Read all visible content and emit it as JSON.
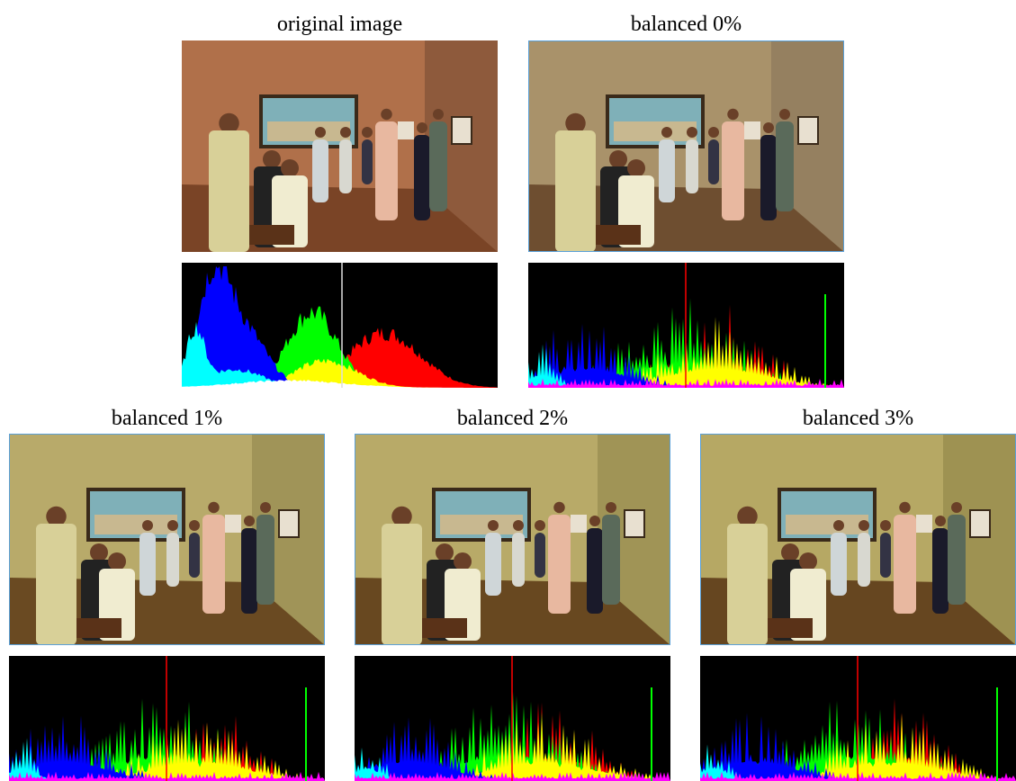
{
  "panels": [
    {
      "caption": "original image"
    },
    {
      "caption": "balanced 0%"
    },
    {
      "caption": "balanced 1%"
    },
    {
      "caption": "balanced 2%"
    },
    {
      "caption": "balanced 3%"
    }
  ]
}
